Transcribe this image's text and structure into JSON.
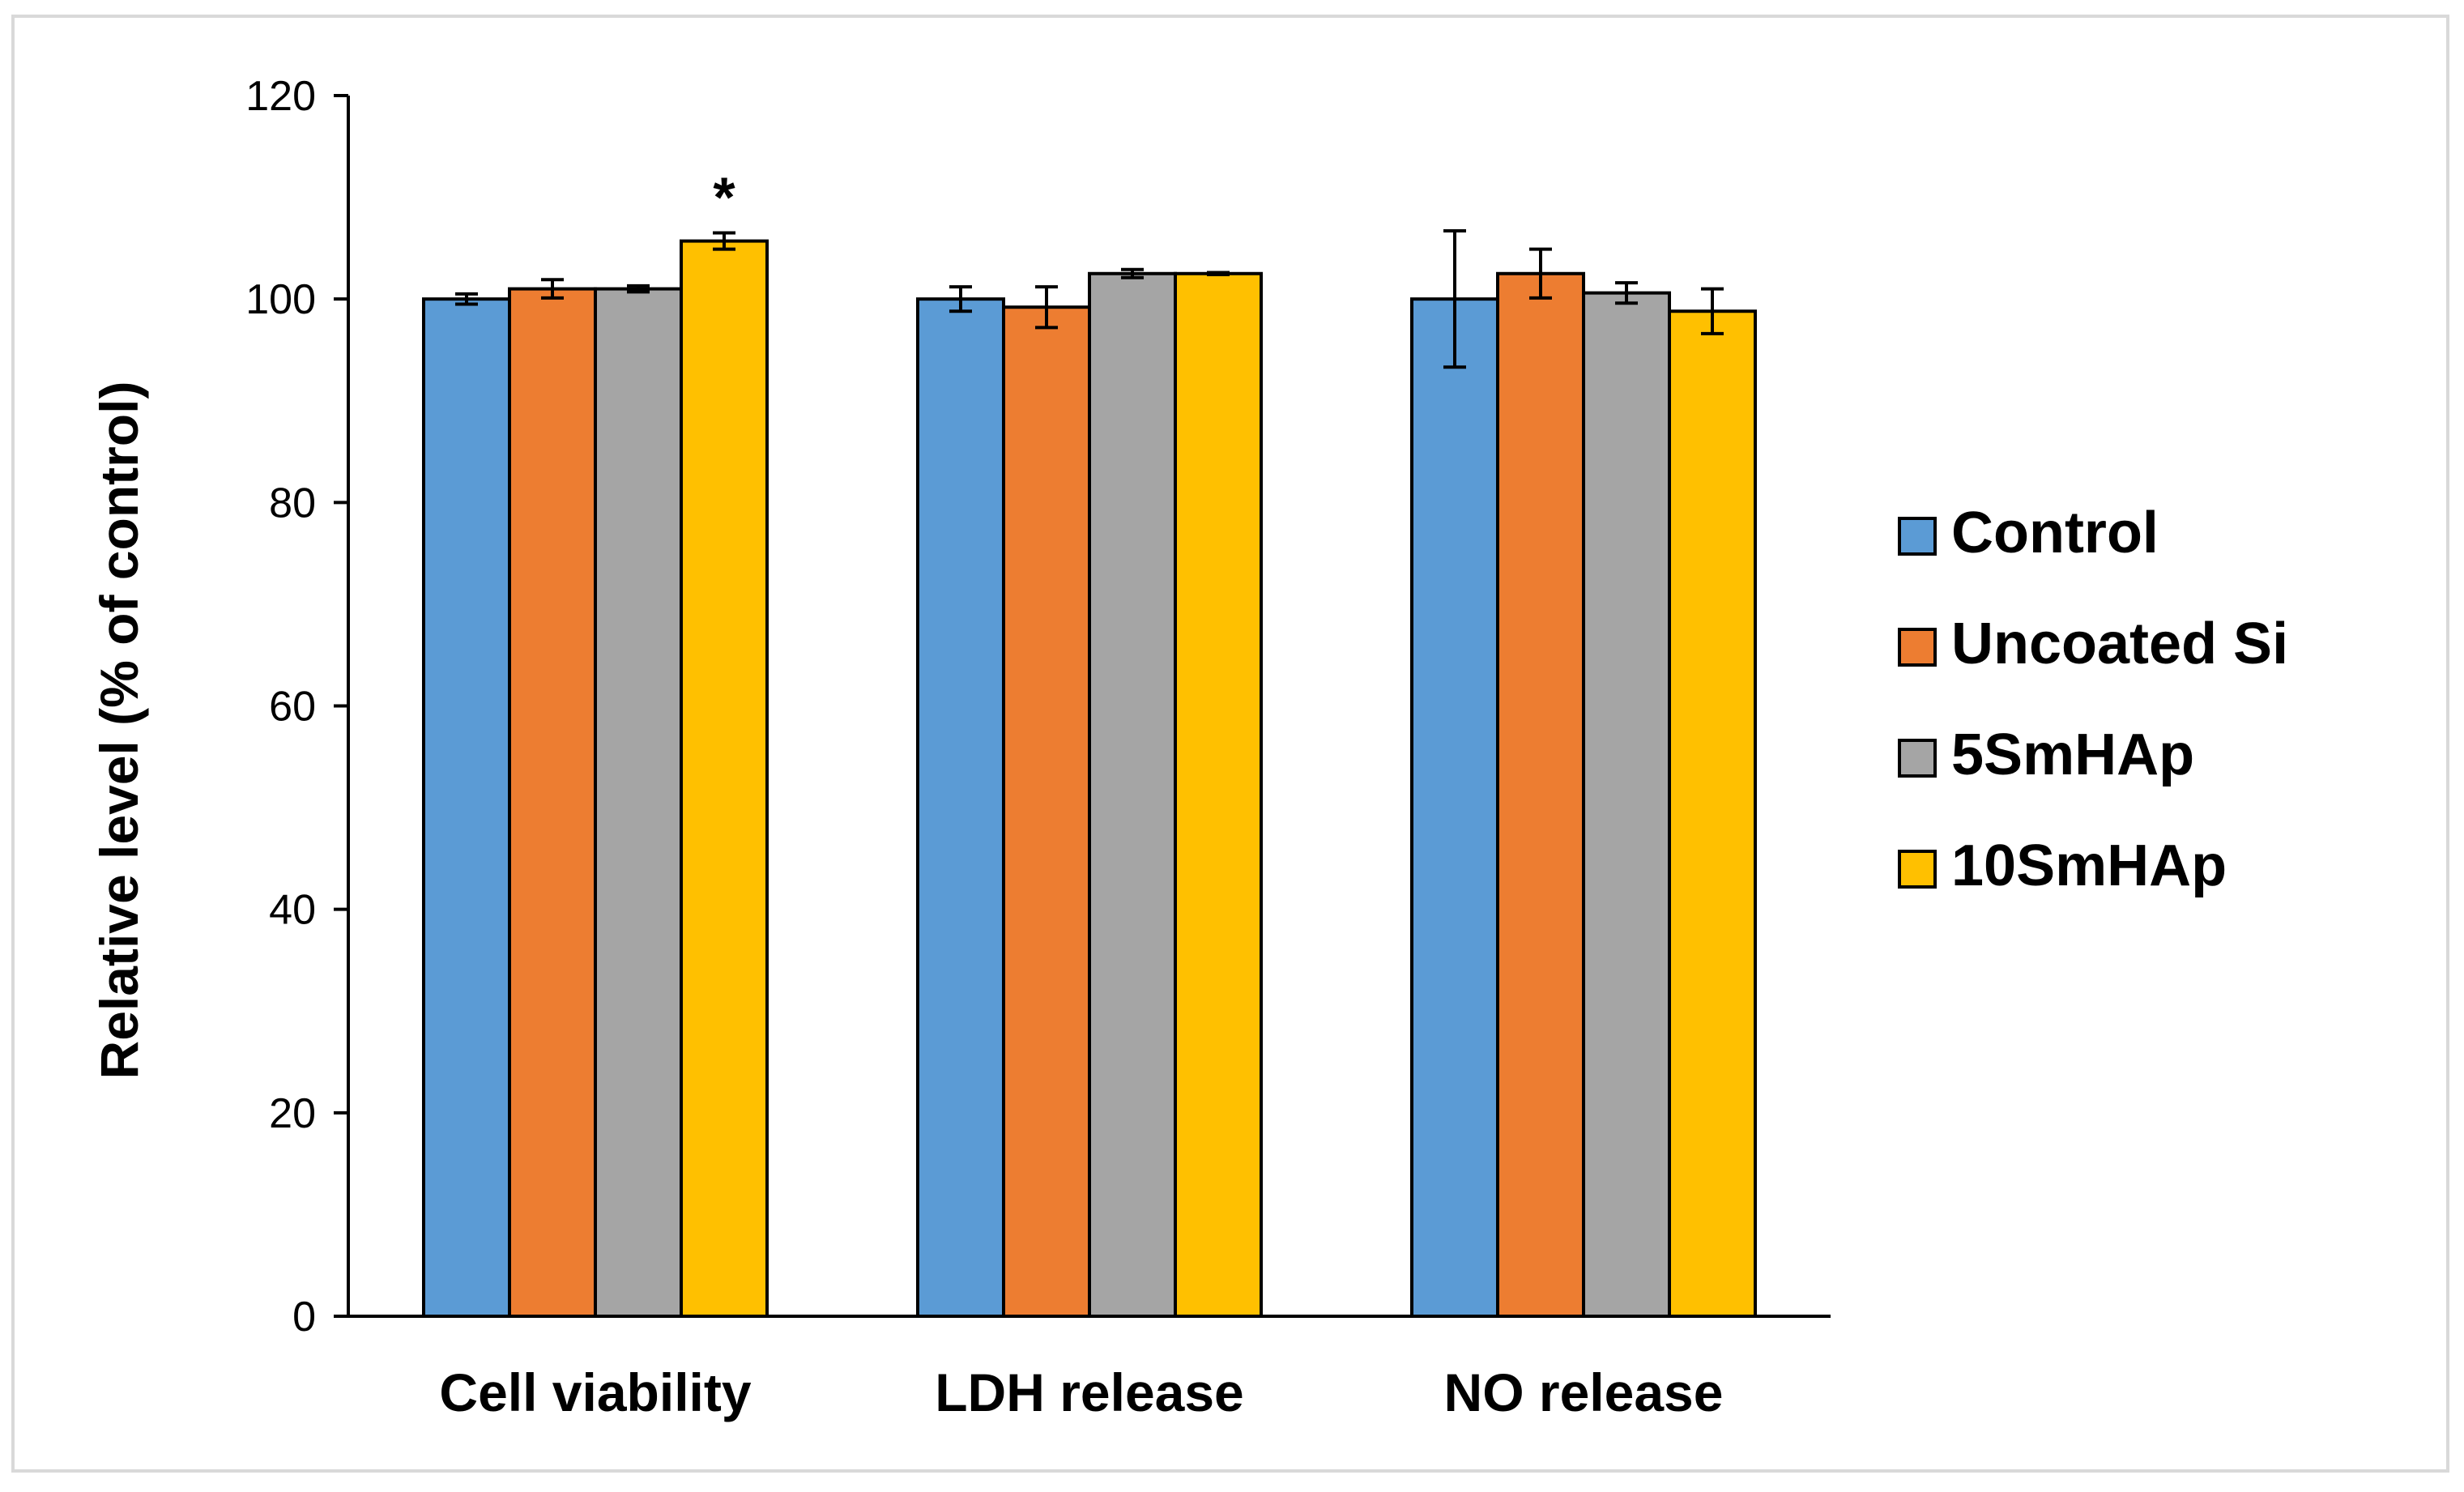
{
  "chart_data": {
    "type": "bar",
    "title": "",
    "xlabel": "",
    "ylabel": "Relative level (% of control)",
    "ylim": [
      0,
      120
    ],
    "yticks": [
      "0",
      "20",
      "40",
      "60",
      "80",
      "100",
      "120"
    ],
    "yticks_values": [
      0,
      20,
      40,
      60,
      80,
      100,
      120
    ],
    "grid": false,
    "legend_position": "right",
    "categories": [
      "Cell viability",
      "LDH release",
      "NO release"
    ],
    "series": [
      {
        "name": "Control",
        "color": "#5b9bd5",
        "values": [
          100,
          100,
          100
        ],
        "errors": [
          0.5,
          1.2,
          6.7
        ]
      },
      {
        "name": "Uncoated Si",
        "color": "#ed7d31",
        "values": [
          101,
          99.2,
          102.5
        ],
        "errors": [
          0.9,
          2.0,
          2.4
        ]
      },
      {
        "name": "5SmHAp",
        "color": "#a5a5a5",
        "values": [
          101,
          102.5,
          100.6
        ],
        "errors": [
          0.3,
          0.4,
          1.0
        ]
      },
      {
        "name": "10SmHAp",
        "color": "#ffc000",
        "values": [
          105.7,
          102.5,
          98.8
        ],
        "errors": [
          0.8,
          0.1,
          2.2
        ]
      }
    ],
    "annotations": [
      {
        "text": "*",
        "category": "Cell viability",
        "series": "10SmHAp"
      }
    ]
  }
}
